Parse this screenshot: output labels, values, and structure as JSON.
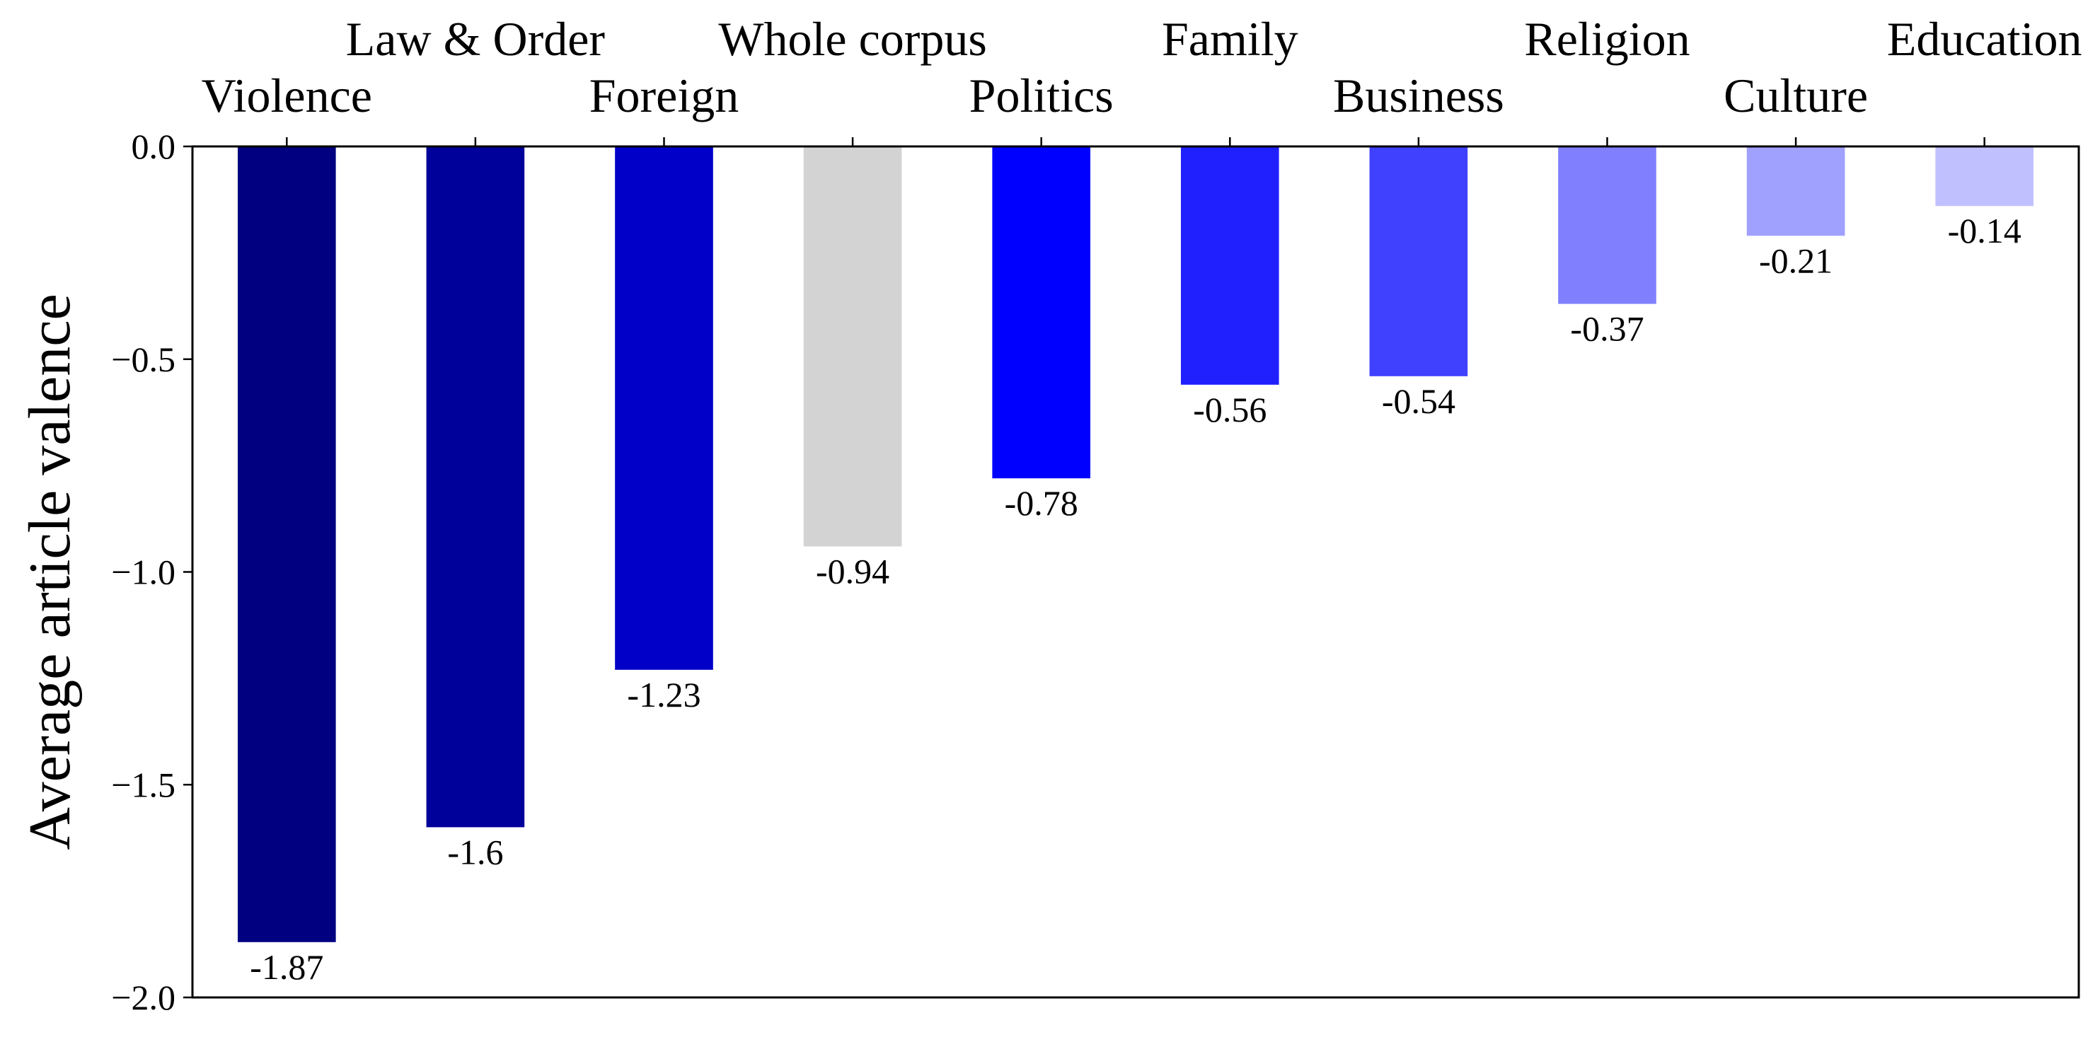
{
  "chart_data": {
    "type": "bar",
    "categories": [
      "Violence",
      "Law & Order",
      "Foreign",
      "Whole corpus",
      "Politics",
      "Family",
      "Business",
      "Religion",
      "Culture",
      "Education"
    ],
    "values": [
      -1.87,
      -1.6,
      -1.23,
      -0.94,
      -0.78,
      -0.56,
      -0.54,
      -0.37,
      -0.21,
      -0.14
    ],
    "data_labels": [
      "-1.87",
      "-1.6",
      "-1.23",
      "-0.94",
      "-0.78",
      "-0.56",
      "-0.54",
      "-0.37",
      "-0.21",
      "-0.14"
    ],
    "colors": [
      "#000080",
      "#00009a",
      "#0000c8",
      "#d3d3d3",
      "#0000ff",
      "#2020ff",
      "#4040ff",
      "#8080ff",
      "#a0a0ff",
      "#c0c0ff"
    ],
    "title": "",
    "xlabel": "",
    "ylabel": "Average article valence",
    "ylim": [
      -2.0,
      0.0
    ],
    "yticks": [
      0.0,
      -0.5,
      -1.0,
      -1.5,
      -2.0
    ],
    "ytick_labels": [
      "0.0",
      "−0.5",
      "−1.0",
      "−1.5",
      "−2.0"
    ],
    "x_tick_labels_position": "top, alternating rows",
    "grid": false,
    "legend": "none"
  }
}
